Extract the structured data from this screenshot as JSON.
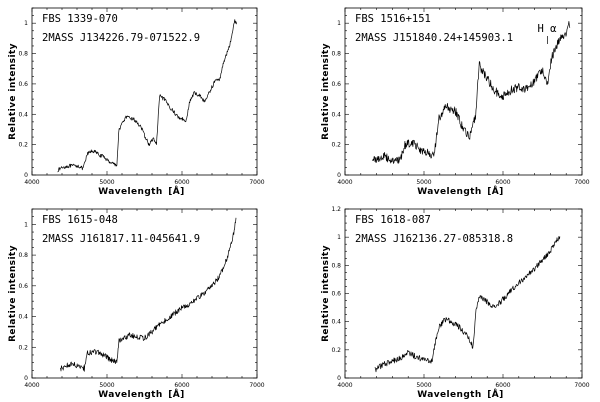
{
  "chart_data": [
    {
      "type": "line",
      "names": [
        "FBS 1339-070",
        "2MASS J134226.79-071522.9"
      ],
      "xlabel": "Wavelength",
      "xunit": "[Å]",
      "ylabel": "Relative intensity",
      "xlim": [
        4000,
        7000
      ],
      "ylim": [
        0,
        1.1
      ],
      "xticks": [
        "4000",
        "5000",
        "6000",
        "7000"
      ],
      "yticks": [
        "0",
        "0.2",
        "0.4",
        "0.6",
        "0.8",
        "1"
      ],
      "anchors": [
        [
          4340,
          0.03
        ],
        [
          4400,
          0.05
        ],
        [
          4500,
          0.06
        ],
        [
          4620,
          0.06
        ],
        [
          4680,
          0.04
        ],
        [
          4740,
          0.14
        ],
        [
          4800,
          0.16
        ],
        [
          4850,
          0.15
        ],
        [
          4900,
          0.13
        ],
        [
          4960,
          0.12
        ],
        [
          5020,
          0.09
        ],
        [
          5080,
          0.08
        ],
        [
          5130,
          0.06
        ],
        [
          5160,
          0.3
        ],
        [
          5250,
          0.38
        ],
        [
          5350,
          0.37
        ],
        [
          5450,
          0.32
        ],
        [
          5500,
          0.26
        ],
        [
          5560,
          0.2
        ],
        [
          5620,
          0.24
        ],
        [
          5660,
          0.2
        ],
        [
          5700,
          0.52
        ],
        [
          5760,
          0.5
        ],
        [
          5850,
          0.44
        ],
        [
          5950,
          0.38
        ],
        [
          6060,
          0.36
        ],
        [
          6100,
          0.48
        ],
        [
          6160,
          0.54
        ],
        [
          6250,
          0.52
        ],
        [
          6300,
          0.48
        ],
        [
          6400,
          0.58
        ],
        [
          6450,
          0.63
        ],
        [
          6500,
          0.62
        ],
        [
          6550,
          0.74
        ],
        [
          6600,
          0.8
        ],
        [
          6650,
          0.88
        ],
        [
          6700,
          1.02
        ],
        [
          6730,
          0.99
        ]
      ],
      "noise": 0.012
    },
    {
      "type": "line",
      "names": [
        "FBS 1516+151",
        "2MASS J151840.24+145903.1"
      ],
      "xlabel": "Wavelength",
      "xunit": "[Å]",
      "ylabel": "Relative intensity",
      "xlim": [
        4000,
        7000
      ],
      "ylim": [
        0,
        1.1
      ],
      "xticks": [
        "4000",
        "5000",
        "6000",
        "7000"
      ],
      "yticks": [
        "0",
        "0.2",
        "0.4",
        "0.6",
        "0.8",
        "1"
      ],
      "annotation": "H α",
      "annotation_x": 6563,
      "anchors": [
        [
          4350,
          0.1
        ],
        [
          4500,
          0.12
        ],
        [
          4600,
          0.1
        ],
        [
          4700,
          0.09
        ],
        [
          4760,
          0.2
        ],
        [
          4850,
          0.22
        ],
        [
          4950,
          0.17
        ],
        [
          5050,
          0.14
        ],
        [
          5130,
          0.12
        ],
        [
          5180,
          0.36
        ],
        [
          5280,
          0.45
        ],
        [
          5400,
          0.42
        ],
        [
          5500,
          0.3
        ],
        [
          5580,
          0.25
        ],
        [
          5650,
          0.38
        ],
        [
          5700,
          0.72
        ],
        [
          5800,
          0.64
        ],
        [
          5900,
          0.55
        ],
        [
          6000,
          0.52
        ],
        [
          6100,
          0.56
        ],
        [
          6200,
          0.58
        ],
        [
          6300,
          0.57
        ],
        [
          6400,
          0.62
        ],
        [
          6500,
          0.7
        ],
        [
          6560,
          0.6
        ],
        [
          6620,
          0.78
        ],
        [
          6700,
          0.88
        ],
        [
          6780,
          0.92
        ],
        [
          6850,
          1.0
        ]
      ],
      "noise": 0.03
    },
    {
      "type": "line",
      "names": [
        "FBS 1615-048",
        "2MASS J161817.11-045641.9"
      ],
      "xlabel": "Wavelength",
      "xunit": "[Å]",
      "ylabel": "Relative intensity",
      "xlim": [
        4000,
        7000
      ],
      "ylim": [
        0,
        1.1
      ],
      "xticks": [
        "4000",
        "5000",
        "6000",
        "7000"
      ],
      "yticks": [
        "0",
        "0.2",
        "0.4",
        "0.6",
        "0.8",
        "1"
      ],
      "anchors": [
        [
          4380,
          0.06
        ],
        [
          4500,
          0.09
        ],
        [
          4650,
          0.08
        ],
        [
          4700,
          0.06
        ],
        [
          4740,
          0.16
        ],
        [
          4850,
          0.17
        ],
        [
          4950,
          0.15
        ],
        [
          5050,
          0.12
        ],
        [
          5130,
          0.1
        ],
        [
          5160,
          0.24
        ],
        [
          5300,
          0.28
        ],
        [
          5400,
          0.27
        ],
        [
          5500,
          0.26
        ],
        [
          5600,
          0.3
        ],
        [
          5700,
          0.35
        ],
        [
          5800,
          0.38
        ],
        [
          5900,
          0.42
        ],
        [
          6000,
          0.46
        ],
        [
          6100,
          0.48
        ],
        [
          6200,
          0.52
        ],
        [
          6300,
          0.55
        ],
        [
          6400,
          0.6
        ],
        [
          6500,
          0.66
        ],
        [
          6600,
          0.78
        ],
        [
          6680,
          0.92
        ],
        [
          6720,
          1.04
        ]
      ],
      "noise": 0.018
    },
    {
      "type": "line",
      "names": [
        "FBS 1618-087",
        "2MASS J162136.27-085318.8"
      ],
      "xlabel": "Wavelength",
      "xunit": "[Å]",
      "ylabel": "Relative intensity",
      "xlim": [
        4000,
        7000
      ],
      "ylim": [
        0,
        1.2
      ],
      "xticks": [
        "4000",
        "5000",
        "6000",
        "7000"
      ],
      "yticks": [
        "0",
        "0.2",
        "0.4",
        "0.6",
        "0.8",
        "1",
        "1.2"
      ],
      "anchors": [
        [
          4380,
          0.06
        ],
        [
          4500,
          0.1
        ],
        [
          4600,
          0.12
        ],
        [
          4700,
          0.14
        ],
        [
          4800,
          0.18
        ],
        [
          4900,
          0.15
        ],
        [
          5000,
          0.13
        ],
        [
          5100,
          0.12
        ],
        [
          5180,
          0.35
        ],
        [
          5260,
          0.42
        ],
        [
          5350,
          0.4
        ],
        [
          5450,
          0.36
        ],
        [
          5550,
          0.3
        ],
        [
          5620,
          0.22
        ],
        [
          5660,
          0.48
        ],
        [
          5700,
          0.58
        ],
        [
          5800,
          0.54
        ],
        [
          5900,
          0.5
        ],
        [
          6000,
          0.56
        ],
        [
          6100,
          0.62
        ],
        [
          6200,
          0.68
        ],
        [
          6300,
          0.72
        ],
        [
          6400,
          0.78
        ],
        [
          6500,
          0.84
        ],
        [
          6600,
          0.9
        ],
        [
          6680,
          0.98
        ],
        [
          6720,
          1.0
        ]
      ],
      "noise": 0.02
    }
  ]
}
